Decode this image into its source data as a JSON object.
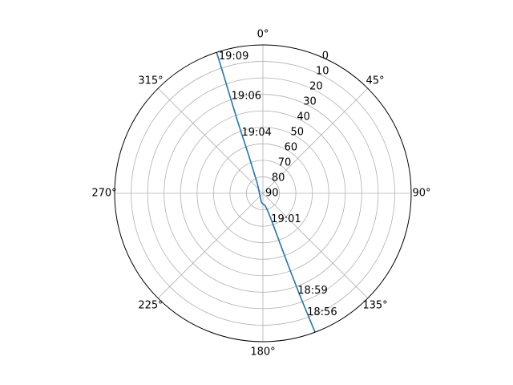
{
  "chart_data": {
    "type": "polar-line",
    "theta_zero": "N",
    "theta_direction": "clockwise",
    "r_axis": {
      "min": 90,
      "max": 0,
      "ticks": [
        0,
        10,
        20,
        30,
        40,
        50,
        60,
        70,
        80,
        90
      ]
    },
    "theta_ticks": [
      0,
      45,
      90,
      135,
      180,
      225,
      270,
      315
    ],
    "theta_tick_labels": [
      "0°",
      "45°",
      "90°",
      "135°",
      "180°",
      "225°",
      "270°",
      "315°"
    ],
    "grid": true,
    "series": [
      {
        "color": "#1f77b4",
        "points": [
          {
            "az": 159.4,
            "el": 0.0
          },
          {
            "az": 159.7,
            "el": 11.6
          },
          {
            "az": 160.1,
            "el": 24.5
          },
          {
            "az": 160.6,
            "el": 43.0
          },
          {
            "az": 161.0,
            "el": 55.5
          },
          {
            "az": 161.5,
            "el": 64.6
          },
          {
            "az": 162.6,
            "el": 73.9
          },
          {
            "az": 165.3,
            "el": 79.5
          },
          {
            "az": 170.0,
            "el": 82.4
          },
          {
            "az": 189.0,
            "el": 84.3
          },
          {
            "az": 330.0,
            "el": 83.3
          },
          {
            "az": 339.5,
            "el": 65.0
          },
          {
            "az": 340.6,
            "el": 44.6
          },
          {
            "az": 341.2,
            "el": 29.4
          },
          {
            "az": 341.6,
            "el": 14.7
          },
          {
            "az": 341.8,
            "el": 0.0
          }
        ]
      }
    ],
    "annotations": [
      {
        "text": "18:56",
        "az": 160.0,
        "el": 13.0
      },
      {
        "text": "18:59",
        "az": 160.8,
        "el": 27.5
      },
      {
        "text": "19:01",
        "az": 164.3,
        "el": 73.5
      },
      {
        "text": "19:04",
        "az": 340.0,
        "el": 50.8
      },
      {
        "text": "19:06",
        "az": 341.5,
        "el": 28.0
      },
      {
        "text": "19:09",
        "az": 341.8,
        "el": 2.6
      }
    ]
  }
}
